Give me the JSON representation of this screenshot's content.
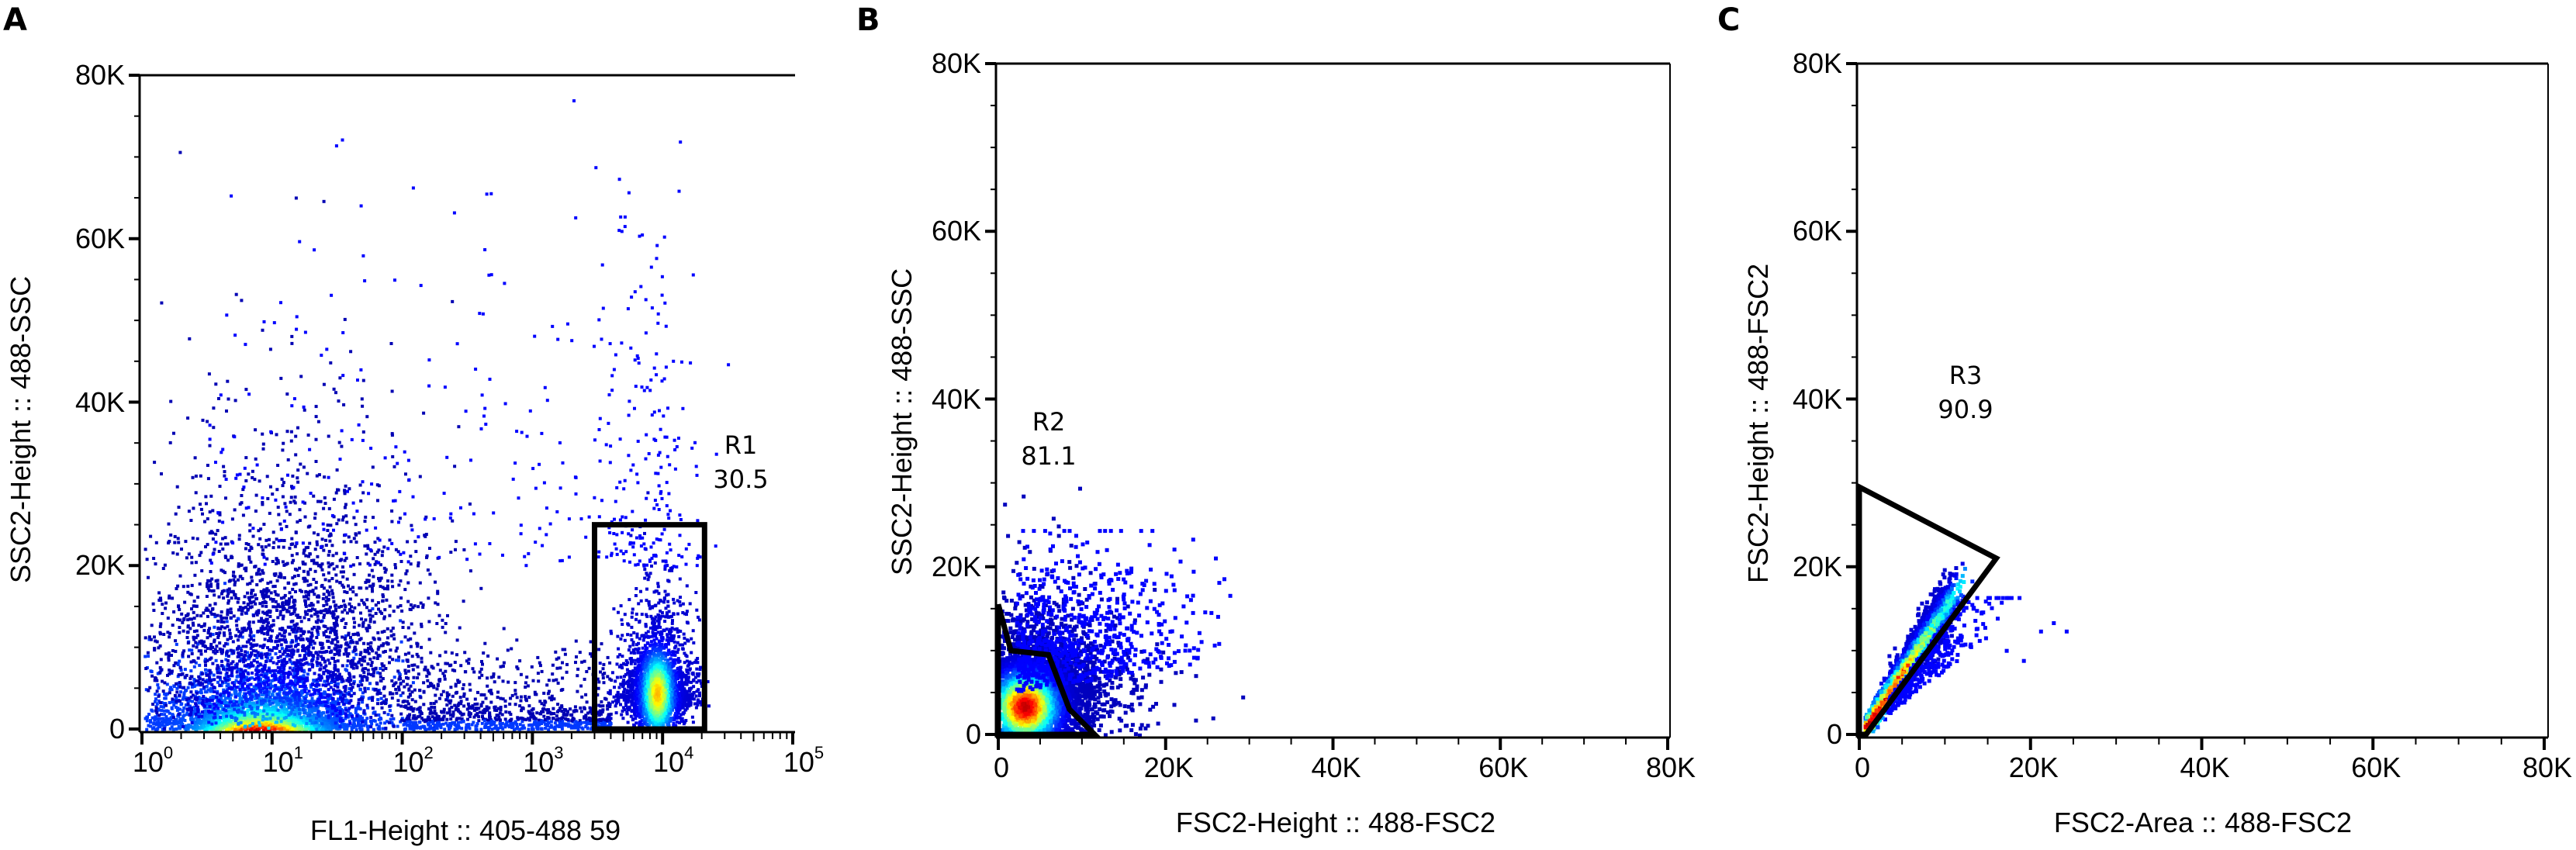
{
  "figure": {
    "panels": [
      {
        "letter": "A",
        "xlabel": "FL1-Height :: 405-488 59",
        "ylabel": "SSC2-Height :: 488-SSC",
        "gate": {
          "name": "R1",
          "value": "30.5"
        }
      },
      {
        "letter": "B",
        "xlabel": "FSC2-Height :: 488-FSC2",
        "ylabel": "SSC2-Height :: 488-SSC",
        "gate": {
          "name": "R2",
          "value": "81.1"
        }
      },
      {
        "letter": "C",
        "xlabel": "FSC2-Area :: 488-FSC2",
        "ylabel": "FSC2-Height :: 488-FSC2",
        "gate": {
          "name": "R3",
          "value": "90.9"
        }
      }
    ]
  },
  "chart_data": [
    {
      "type": "scatter",
      "subtype": "flow-cytometry pseudocolor density plot",
      "panel": "A",
      "xlabel": "FL1-Height :: 405-488 59",
      "ylabel": "SSC2-Height :: 488-SSC",
      "xscale": "log",
      "xlim": [
        1,
        100000
      ],
      "ylim": [
        0,
        80000
      ],
      "xticks": [
        "10^0",
        "10^1",
        "10^2",
        "10^3",
        "10^4",
        "10^5"
      ],
      "yticks": [
        "0",
        "20K",
        "40K",
        "60K",
        "80K"
      ],
      "grid": false,
      "colormap": "jet (blue low density → red high density)",
      "populations": [
        {
          "description": "dense low-FL1 population",
          "x_center": 8,
          "y_center": 1000,
          "peak_density": "red"
        },
        {
          "description": "FL1-positive population",
          "x_center": 9000,
          "y_center": 5000,
          "peak_density": "yellow-green"
        }
      ],
      "gates": [
        {
          "name": "R1",
          "shape": "rectangle",
          "x_range": [
            3000,
            21000
          ],
          "y_range": [
            0,
            25000
          ],
          "percent": 30.5
        }
      ]
    },
    {
      "type": "scatter",
      "subtype": "flow-cytometry pseudocolor density plot",
      "panel": "B",
      "xlabel": "FSC2-Height :: 488-FSC2",
      "ylabel": "SSC2-Height :: 488-SSC",
      "xscale": "linear",
      "xlim": [
        0,
        80000
      ],
      "ylim": [
        0,
        80000
      ],
      "xticks": [
        "0",
        "20K",
        "40K",
        "60K",
        "80K"
      ],
      "yticks": [
        "0",
        "20K",
        "40K",
        "60K",
        "80K"
      ],
      "grid": false,
      "colormap": "jet",
      "populations": [
        {
          "description": "main cell cluster",
          "x_center": 3000,
          "y_center": 3500,
          "peak_density": "red"
        }
      ],
      "gates": [
        {
          "name": "R2",
          "shape": "polygon",
          "vertices": [
            [
              0,
              15500
            ],
            [
              1500,
              10000
            ],
            [
              6000,
              9500
            ],
            [
              8500,
              3000
            ],
            [
              11500,
              0
            ],
            [
              0,
              0
            ]
          ],
          "percent": 81.1
        }
      ]
    },
    {
      "type": "scatter",
      "subtype": "flow-cytometry pseudocolor density plot",
      "panel": "C",
      "xlabel": "FSC2-Area :: 488-FSC2",
      "ylabel": "FSC2-Height :: 488-FSC2",
      "xscale": "linear",
      "xlim": [
        0,
        80000
      ],
      "ylim": [
        0,
        80000
      ],
      "xticks": [
        "0",
        "20K",
        "40K",
        "60K",
        "80K"
      ],
      "yticks": [
        "0",
        "20K",
        "40K",
        "60K",
        "80K"
      ],
      "grid": false,
      "colormap": "jet",
      "populations": [
        {
          "description": "singlet diagonal band",
          "x_range": [
            1000,
            12000
          ],
          "y_range": [
            1000,
            17000
          ],
          "peak_density": "red"
        }
      ],
      "gates": [
        {
          "name": "R3",
          "shape": "polygon",
          "vertices": [
            [
              0,
              29500
            ],
            [
              16000,
              21000
            ],
            [
              800,
              0
            ],
            [
              0,
              0
            ]
          ],
          "percent": 90.9
        }
      ]
    }
  ]
}
